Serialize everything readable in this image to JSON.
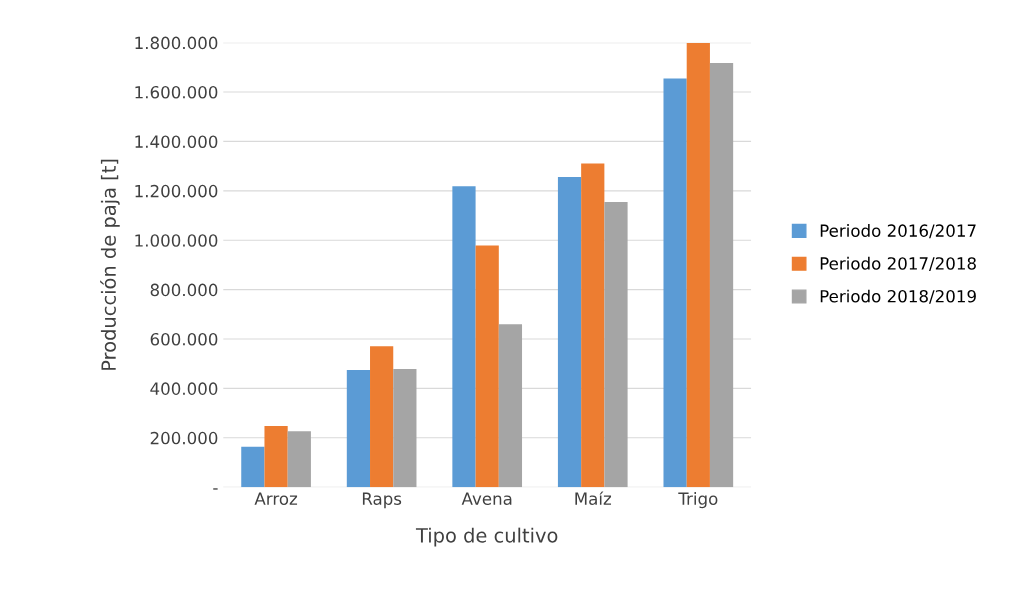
{
  "chart_data": {
    "type": "bar",
    "xlabel": "Tipo de cultivo",
    "ylabel": "Producción de paja [t]",
    "categories": [
      "Arroz",
      "Raps",
      "Avena",
      "Maíz",
      "Trigo"
    ],
    "series": [
      {
        "name": "Periodo 2016/2017",
        "color": "#5b9bd5",
        "values": [
          164000,
          475000,
          1218000,
          1256000,
          1655000
        ]
      },
      {
        "name": "Periodo 2017/2018",
        "color": "#ed7d31",
        "values": [
          248000,
          571000,
          979000,
          1311000,
          1798000
        ]
      },
      {
        "name": "Periodo 2018/2019",
        "color": "#a5a5a5",
        "values": [
          227000,
          479000,
          660000,
          1155000,
          1718000
        ]
      }
    ],
    "ylim": [
      0,
      1800000
    ],
    "yticks": [
      {
        "value": 0,
        "label": "-"
      },
      {
        "value": 200000,
        "label": "200.000"
      },
      {
        "value": 400000,
        "label": "400.000"
      },
      {
        "value": 600000,
        "label": "600.000"
      },
      {
        "value": 800000,
        "label": "800.000"
      },
      {
        "value": 1000000,
        "label": "1.000.000"
      },
      {
        "value": 1200000,
        "label": "1.200.000"
      },
      {
        "value": 1400000,
        "label": "1.400.000"
      },
      {
        "value": 1600000,
        "label": "1.600.000"
      },
      {
        "value": 1800000,
        "label": "1.800.000"
      }
    ],
    "grid": "y",
    "legend": "right"
  }
}
